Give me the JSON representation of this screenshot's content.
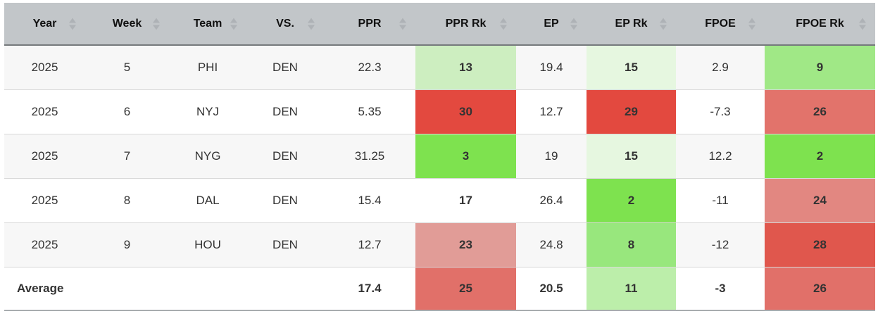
{
  "colors": {
    "header_bg": "#c2c6c9",
    "header_border": "#75797c",
    "sort_arrow": "#aeb2b6",
    "row_alt_bg": "#f7f7f7",
    "row_border": "#d9d9d9",
    "table_bottom_border": "#a8acaf",
    "text": "#333333",
    "rank_scale": {
      "best_green": "#7ee24f",
      "mid_green": "#98e77d",
      "light_green": "#cdeec0",
      "faint_green": "#e6f7e0",
      "worst_red": "#e3493f",
      "mid_red": "#e2736b",
      "light_red": "#e19c97",
      "neutral": "none"
    }
  },
  "table": {
    "columns": [
      {
        "key": "year",
        "label": "Year"
      },
      {
        "key": "week",
        "label": "Week"
      },
      {
        "key": "team",
        "label": "Team"
      },
      {
        "key": "vs",
        "label": "VS."
      },
      {
        "key": "ppr",
        "label": "PPR"
      },
      {
        "key": "ppr-rk",
        "label": "PPR Rk"
      },
      {
        "key": "ep",
        "label": "EP"
      },
      {
        "key": "ep-rk",
        "label": "EP Rk"
      },
      {
        "key": "fpoe",
        "label": "FPOE"
      },
      {
        "key": "fpoe-rk",
        "label": "FPOE Rk"
      }
    ],
    "rows": [
      {
        "cells": [
          {
            "text": "2025"
          },
          {
            "text": "5"
          },
          {
            "text": "PHI"
          },
          {
            "text": "DEN"
          },
          {
            "text": "22.3"
          },
          {
            "text": "13",
            "bg": "#cdeec0",
            "bold": true
          },
          {
            "text": "19.4"
          },
          {
            "text": "15",
            "bg": "#e6f7e0",
            "bold": true
          },
          {
            "text": "2.9"
          },
          {
            "text": "9",
            "bg": "#a0e886",
            "bold": true
          }
        ]
      },
      {
        "cells": [
          {
            "text": "2025"
          },
          {
            "text": "6"
          },
          {
            "text": "NYJ"
          },
          {
            "text": "DEN"
          },
          {
            "text": "5.35"
          },
          {
            "text": "30",
            "bg": "#e3493f",
            "bold": true
          },
          {
            "text": "12.7"
          },
          {
            "text": "29",
            "bg": "#e3493f",
            "bold": true
          },
          {
            "text": "-7.3"
          },
          {
            "text": "26",
            "bg": "#e2736b",
            "bold": true
          }
        ]
      },
      {
        "cells": [
          {
            "text": "2025"
          },
          {
            "text": "7"
          },
          {
            "text": "NYG"
          },
          {
            "text": "DEN"
          },
          {
            "text": "31.25"
          },
          {
            "text": "3",
            "bg": "#7ee24f",
            "bold": true
          },
          {
            "text": "19"
          },
          {
            "text": "15",
            "bg": "#e6f7e0",
            "bold": true
          },
          {
            "text": "12.2"
          },
          {
            "text": "2",
            "bg": "#7ee24f",
            "bold": true
          }
        ]
      },
      {
        "cells": [
          {
            "text": "2025"
          },
          {
            "text": "8"
          },
          {
            "text": "DAL"
          },
          {
            "text": "DEN"
          },
          {
            "text": "15.4"
          },
          {
            "text": "17",
            "bold": true
          },
          {
            "text": "26.4"
          },
          {
            "text": "2",
            "bg": "#7ee24f",
            "bold": true
          },
          {
            "text": "-11"
          },
          {
            "text": "24",
            "bg": "#e28781",
            "bold": true
          }
        ]
      },
      {
        "cells": [
          {
            "text": "2025"
          },
          {
            "text": "9"
          },
          {
            "text": "HOU"
          },
          {
            "text": "DEN"
          },
          {
            "text": "12.7"
          },
          {
            "text": "23",
            "bg": "#e19c97",
            "bold": true
          },
          {
            "text": "24.8"
          },
          {
            "text": "8",
            "bg": "#98e77d",
            "bold": true
          },
          {
            "text": "-12"
          },
          {
            "text": "28",
            "bg": "#e0574d",
            "bold": true
          }
        ]
      },
      {
        "is_average": true,
        "cells": [
          {
            "text": "Average",
            "bold": true
          },
          {
            "text": "",
            "bold": true
          },
          {
            "text": "",
            "bold": true
          },
          {
            "text": "",
            "bold": true
          },
          {
            "text": "17.4",
            "bold": true
          },
          {
            "text": "25",
            "bg": "#e17069",
            "bold": true
          },
          {
            "text": "20.5",
            "bold": true
          },
          {
            "text": "11",
            "bg": "#bceeaa",
            "bold": true
          },
          {
            "text": "-3",
            "bold": true
          },
          {
            "text": "26",
            "bg": "#e17069",
            "bold": true
          }
        ]
      }
    ]
  }
}
